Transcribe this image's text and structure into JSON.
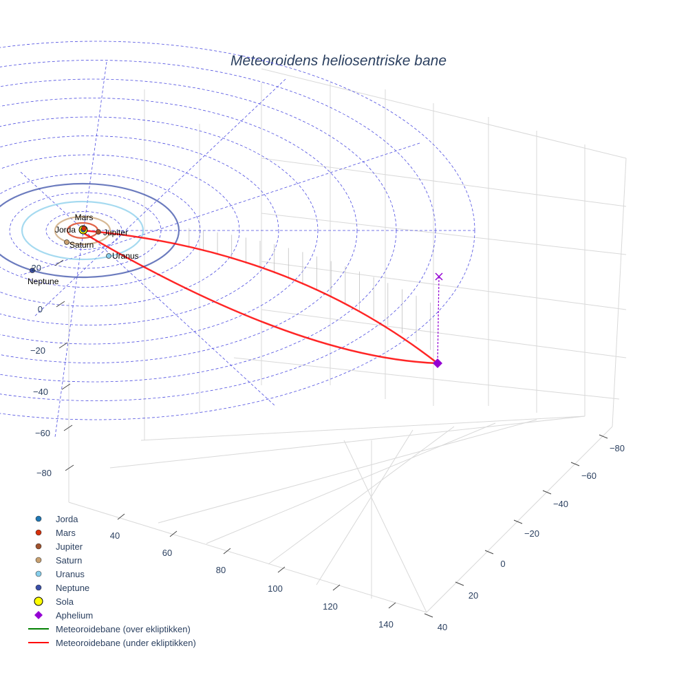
{
  "chart_data": {
    "type": "scatter3d",
    "title": "Meteoroidens heliosentriske bane",
    "x_ticks": [
      "40",
      "60",
      "80",
      "100",
      "120",
      "140"
    ],
    "y_ticks": [
      "−80",
      "−60",
      "−40",
      "−20",
      "0",
      "20",
      "40"
    ],
    "z_ticks": [
      "20",
      "0",
      "−20",
      "−40",
      "−60",
      "−80"
    ],
    "planets": [
      {
        "name": "Jorda",
        "color": "#1f77b4"
      },
      {
        "name": "Mars",
        "color": "#d62f0a"
      },
      {
        "name": "Jupiter",
        "color": "#a0522d"
      },
      {
        "name": "Saturn",
        "color": "#c8a070"
      },
      {
        "name": "Uranus",
        "color": "#87ceeb"
      },
      {
        "name": "Neptune",
        "color": "#3a4fa8"
      }
    ],
    "sun": {
      "name": "Sola",
      "color": "#ffff00"
    },
    "aphelion": {
      "name": "Aphelium",
      "color": "#9400d3"
    },
    "legend": [
      {
        "label": "Jorda",
        "color": "#1f77b4",
        "symbol": "dot"
      },
      {
        "label": "Mars",
        "color": "#d62f0a",
        "symbol": "dot"
      },
      {
        "label": "Jupiter",
        "color": "#a0522d",
        "symbol": "dot"
      },
      {
        "label": "Saturn",
        "color": "#c8a070",
        "symbol": "dot"
      },
      {
        "label": "Uranus",
        "color": "#87ceeb",
        "symbol": "dot"
      },
      {
        "label": "Neptune",
        "color": "#3a4fa8",
        "symbol": "dot"
      },
      {
        "label": "Sola",
        "color": "#ffff00",
        "symbol": "bigdot"
      },
      {
        "label": "Aphelium",
        "color": "#9400d3",
        "symbol": "diamond"
      },
      {
        "label": "Meteoroidebane (over ekliptikken)",
        "color": "#008000",
        "symbol": "line"
      },
      {
        "label": "Meteoroidebane (under ekliptikken)",
        "color": "#ff0000",
        "symbol": "line"
      }
    ],
    "legend_position": "bottom-left"
  }
}
